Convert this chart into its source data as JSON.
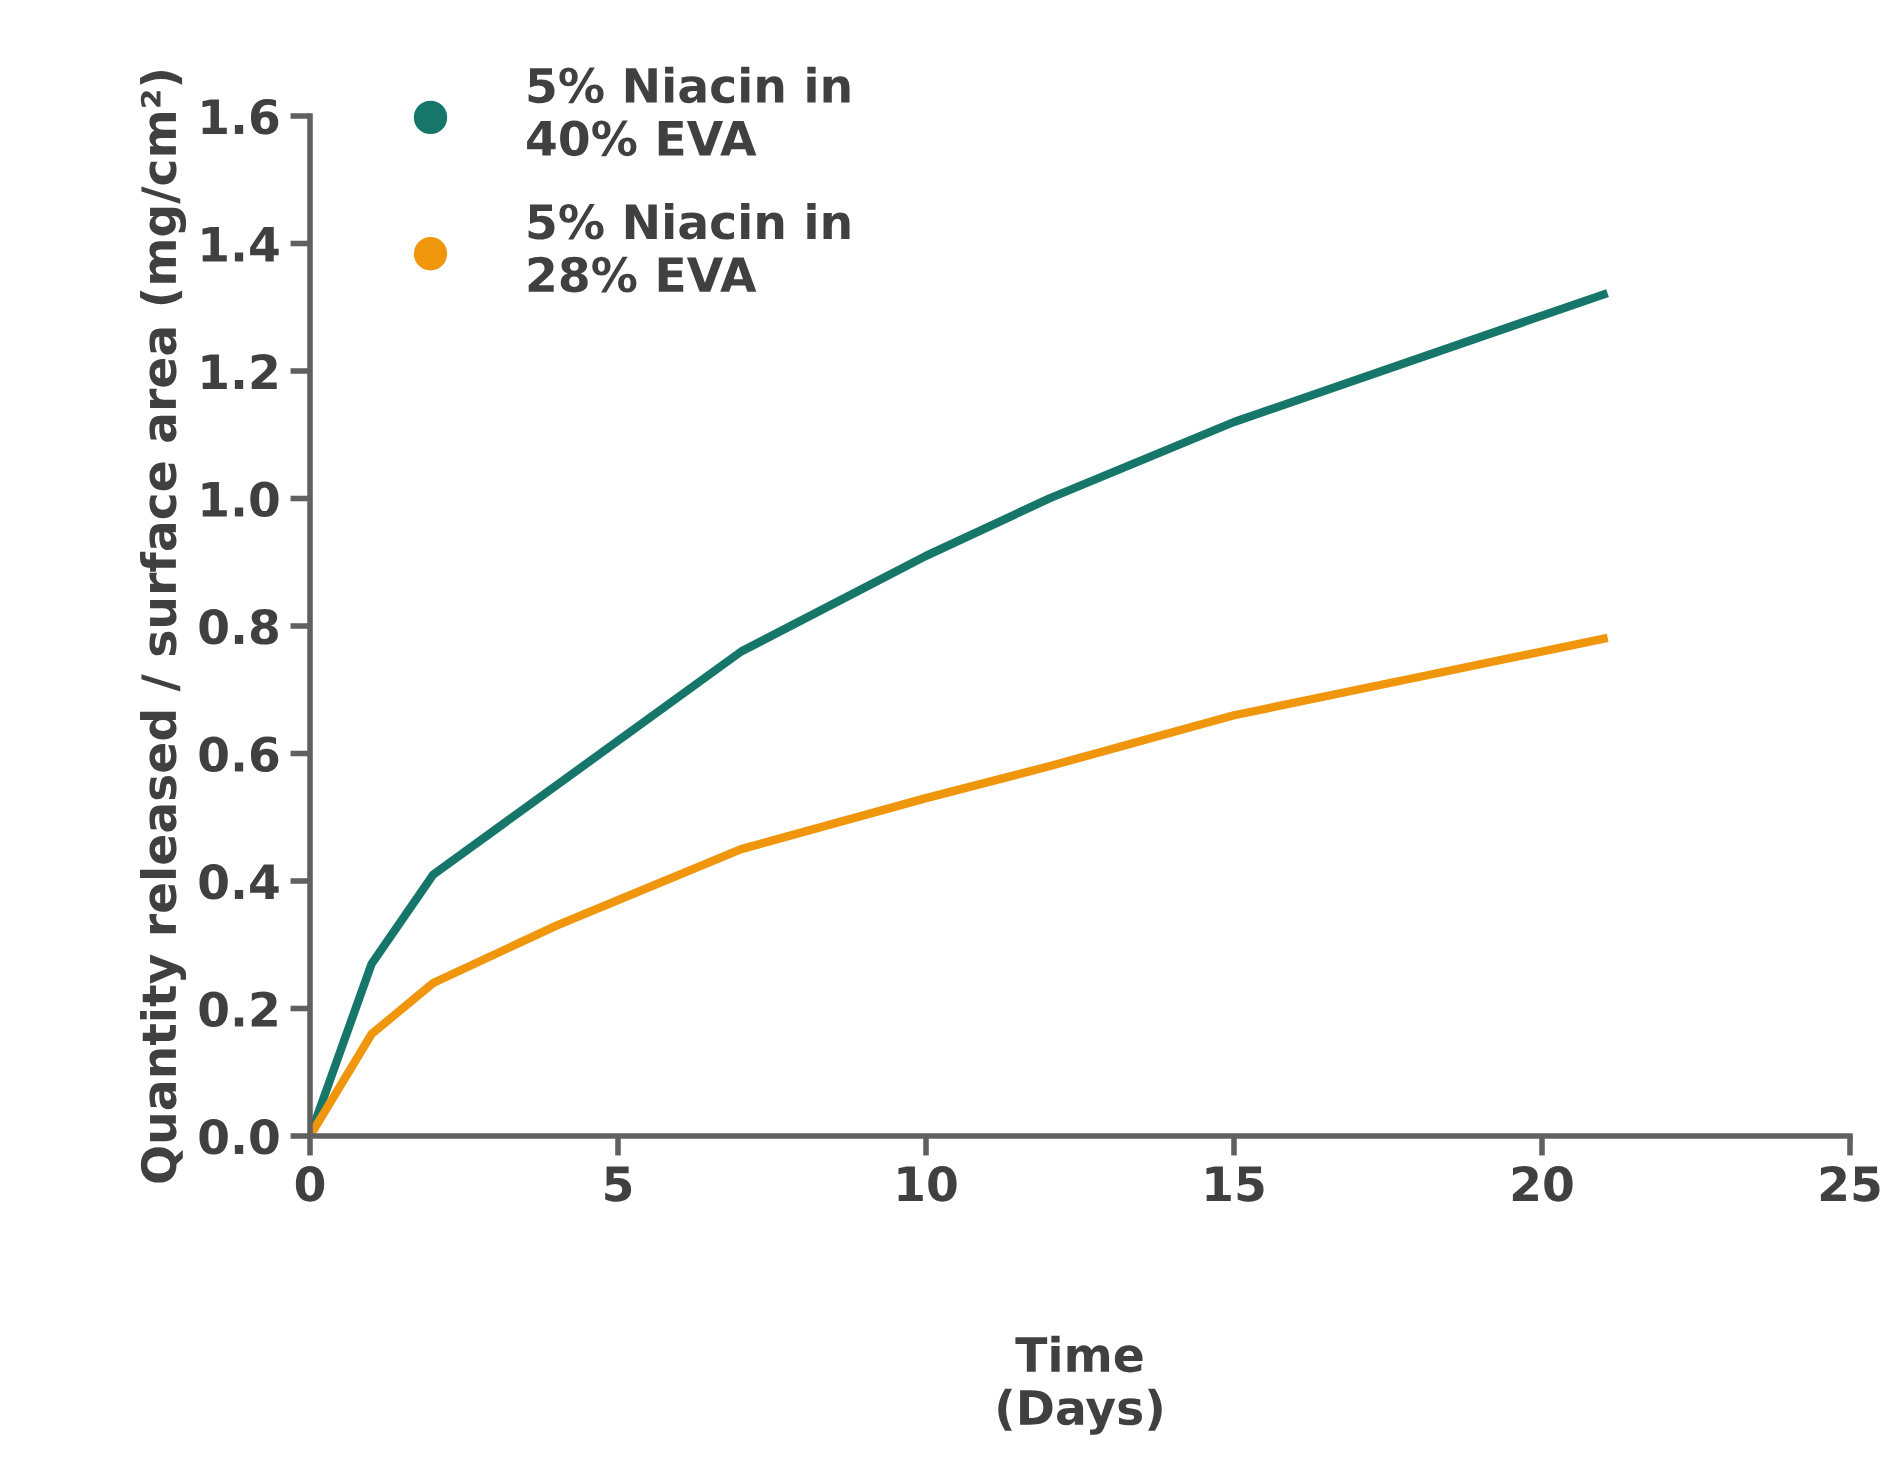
{
  "chart_data": {
    "type": "line",
    "xlabel": "Time\n(Days)",
    "ylabel": "Quantity released / surface area (mg/cm²)",
    "xlim": [
      0,
      25
    ],
    "xticks": [
      0,
      5,
      10,
      15,
      20,
      25
    ],
    "ylim": [
      0,
      1.6
    ],
    "yticks": [
      {
        "value": 0,
        "label": "0.0"
      },
      0.2,
      0.4,
      0.6,
      0.8,
      {
        "value": 1,
        "label": "1.0"
      },
      1.2,
      1.4,
      1.6
    ],
    "legend": "top left",
    "marker": "none",
    "line_style": "solid",
    "grid": false,
    "series": [
      {
        "name": "5% Niacin in\n40% EVA",
        "color": "#16766a",
        "x": [
          0,
          1,
          2,
          4,
          7,
          9,
          10,
          12,
          15,
          18,
          21
        ],
        "values": [
          0,
          0.27,
          0.41,
          0.55,
          0.76,
          0.86,
          0.91,
          1.0,
          1.12,
          1.22,
          1.32
        ]
      },
      {
        "name": "5% Niacin in\n28% EVA",
        "color": "#f0960c",
        "x": [
          0,
          1,
          2,
          4,
          7,
          10,
          12,
          15,
          18,
          21
        ],
        "values": [
          0,
          0.16,
          0.24,
          0.33,
          0.45,
          0.53,
          0.58,
          0.66,
          0.72,
          0.78
        ]
      }
    ]
  }
}
